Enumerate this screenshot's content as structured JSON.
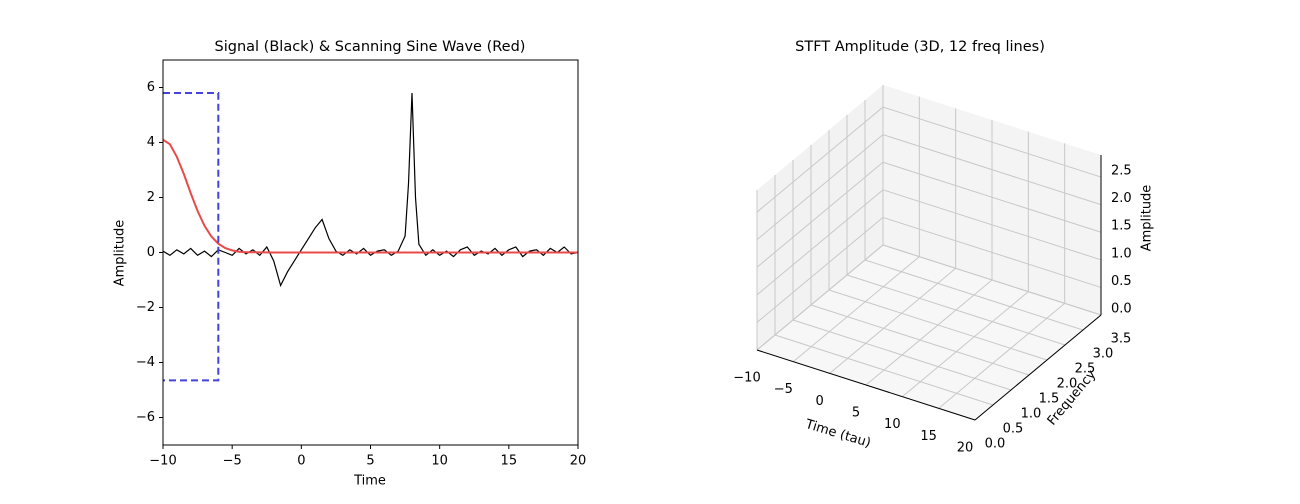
{
  "chart_data": [
    {
      "type": "line",
      "title": "Signal (Black) & Scanning Sine Wave (Red)",
      "xlabel": "Time",
      "ylabel": "Amplitude",
      "xlim": [
        -10,
        20
      ],
      "ylim": [
        -7,
        7
      ],
      "xticks": [
        {
          "value": -10,
          "label": "−10"
        },
        {
          "value": -5,
          "label": "−5"
        },
        0,
        5,
        10,
        15,
        20
      ],
      "yticks": [
        {
          "value": -6,
          "label": "−6"
        },
        {
          "value": -4,
          "label": "−4"
        },
        {
          "value": -2,
          "label": "−2"
        },
        0,
        2,
        4,
        6
      ],
      "series": [
        {
          "color": "#000000",
          "linestyle": "solid",
          "x": [
            -10,
            -9.5,
            -9,
            -8.5,
            -8,
            -7.5,
            -7,
            -6.5,
            -6,
            -5.5,
            -5,
            -4.5,
            -4,
            -3.5,
            -3,
            -2.5,
            -2,
            -1.5,
            -1,
            -0.5,
            0,
            0.5,
            1,
            1.5,
            2,
            2.5,
            3,
            3.5,
            4,
            4.5,
            5,
            5.5,
            6,
            6.5,
            7,
            7.5,
            7.75,
            8,
            8.25,
            8.5,
            9,
            9.5,
            10,
            10.5,
            11,
            11.5,
            12,
            12.5,
            13,
            13.5,
            14,
            14.5,
            15,
            15.5,
            16,
            16.5,
            17,
            17.5,
            18,
            18.5,
            19,
            19.5,
            20
          ],
          "values": [
            0.05,
            -0.1,
            0.1,
            -0.05,
            0.15,
            -0.1,
            0.05,
            -0.15,
            0.1,
            0.0,
            -0.1,
            0.15,
            -0.05,
            0.1,
            -0.1,
            0.2,
            -0.3,
            -1.2,
            -0.7,
            -0.3,
            0.1,
            0.5,
            0.9,
            1.2,
            0.5,
            0.05,
            -0.1,
            0.1,
            -0.05,
            0.15,
            -0.1,
            0.05,
            0.1,
            -0.1,
            0.05,
            0.6,
            2.5,
            5.8,
            2.0,
            0.3,
            -0.1,
            0.1,
            -0.1,
            0.05,
            -0.15,
            0.1,
            0.2,
            -0.1,
            0.05,
            -0.05,
            0.15,
            -0.1,
            0.1,
            0.2,
            -0.15,
            0.05,
            0.1,
            -0.1,
            0.15,
            0.0,
            0.2,
            -0.05,
            0.0
          ]
        },
        {
          "color": "#e84a4a",
          "linestyle": "solid",
          "x": [
            -10,
            -9.5,
            -9,
            -8.5,
            -8,
            -7.5,
            -7,
            -6.5,
            -6,
            -5.5,
            -5,
            -4.5,
            -4,
            -2,
            20
          ],
          "values": [
            4.1,
            3.94,
            3.48,
            2.86,
            2.16,
            1.51,
            0.97,
            0.58,
            0.32,
            0.16,
            0.075,
            0.03,
            0.01,
            0.0,
            0.0
          ]
        },
        {
          "color": "#4444dd",
          "linestyle": "dashed",
          "x": [
            -10,
            -6,
            -6,
            -10
          ],
          "values": [
            5.8,
            5.8,
            -4.65,
            -4.65
          ]
        }
      ]
    },
    {
      "type": "3d",
      "title": "STFT Amplitude (3D, 12 freq lines)",
      "xlabel": "Time (tau)",
      "ylabel": "Frequency",
      "zlabel": "Amplitude",
      "xlim": [
        -10,
        20
      ],
      "ylim": [
        0,
        3.5
      ],
      "zlim": [
        0,
        2.9
      ],
      "xticks": [
        {
          "value": -10,
          "label": "−10"
        },
        {
          "value": -5,
          "label": "−5"
        },
        0,
        5,
        10,
        15,
        20
      ],
      "yticks": [
        {
          "value": 0,
          "label": "0.0"
        },
        0.5,
        {
          "value": 1,
          "label": "1.0"
        },
        1.5,
        {
          "value": 2,
          "label": "2.0"
        },
        2.5,
        {
          "value": 3,
          "label": "3.0"
        },
        3.5
      ],
      "zticks": [
        {
          "value": 0,
          "label": "0.0"
        },
        0.5,
        {
          "value": 1,
          "label": "1.0"
        },
        1.5,
        {
          "value": 2,
          "label": "2.0"
        },
        2.5
      ]
    }
  ]
}
